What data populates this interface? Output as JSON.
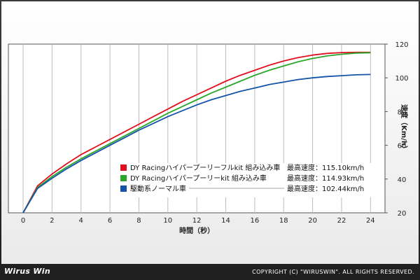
{
  "footer": {
    "logo": "Wirus Win",
    "copyright": "COPYRIGHT (C) \"WIRUSWIN\". ALL RIGHTS RESERVED."
  },
  "chart_data": {
    "type": "line",
    "xlabel": "時間（秒）",
    "ylabel": "速度（Km/h）",
    "xlim": [
      0,
      25
    ],
    "ylim": [
      20,
      120
    ],
    "xticks": [
      0,
      2,
      4,
      6,
      8,
      10,
      12,
      14,
      16,
      18,
      20,
      22,
      24
    ],
    "yticks": [
      20,
      40,
      60,
      80,
      100,
      120
    ],
    "grid": "vertical",
    "legend_position": "bottom-right",
    "x": [
      0,
      1,
      2,
      3,
      4,
      5,
      6,
      7,
      8,
      9,
      10,
      11,
      12,
      13,
      14,
      15,
      16,
      17,
      18,
      19,
      20,
      21,
      22,
      23,
      24
    ],
    "series": [
      {
        "name": "DY Racingハイパープーリーフルkit 組み込み車",
        "note": "最高速度：115.10km/h",
        "color": "#e0101e",
        "values": [
          20,
          36,
          43,
          49,
          54.5,
          59,
          63.5,
          68,
          72.5,
          77,
          81.5,
          86,
          90,
          94,
          98,
          101.5,
          104.5,
          107.5,
          110,
          112,
          113.5,
          114.5,
          115,
          115.1,
          115.1
        ]
      },
      {
        "name": "DY Racingハイパープーリーkit 組み込み車",
        "note": "最高速度：114.93km/h",
        "color": "#2aa62a",
        "values": [
          20,
          35,
          41.5,
          47,
          52,
          56.5,
          61,
          65.5,
          70,
          74.5,
          79,
          83,
          87,
          91,
          94.5,
          98,
          101.5,
          104.5,
          107,
          109.5,
          111.5,
          113,
          114,
          114.7,
          114.9
        ]
      },
      {
        "name": "駆動系ノーマル車",
        "note": "最高速度：102.44km/h",
        "color": "#1553a8",
        "values": [
          20,
          34.5,
          40.5,
          46,
          51,
          55.5,
          60,
          64.5,
          69,
          73,
          77,
          80.5,
          84,
          87,
          89.5,
          92,
          94,
          96,
          97.5,
          99,
          100,
          100.8,
          101.3,
          101.8,
          102
        ]
      }
    ]
  }
}
